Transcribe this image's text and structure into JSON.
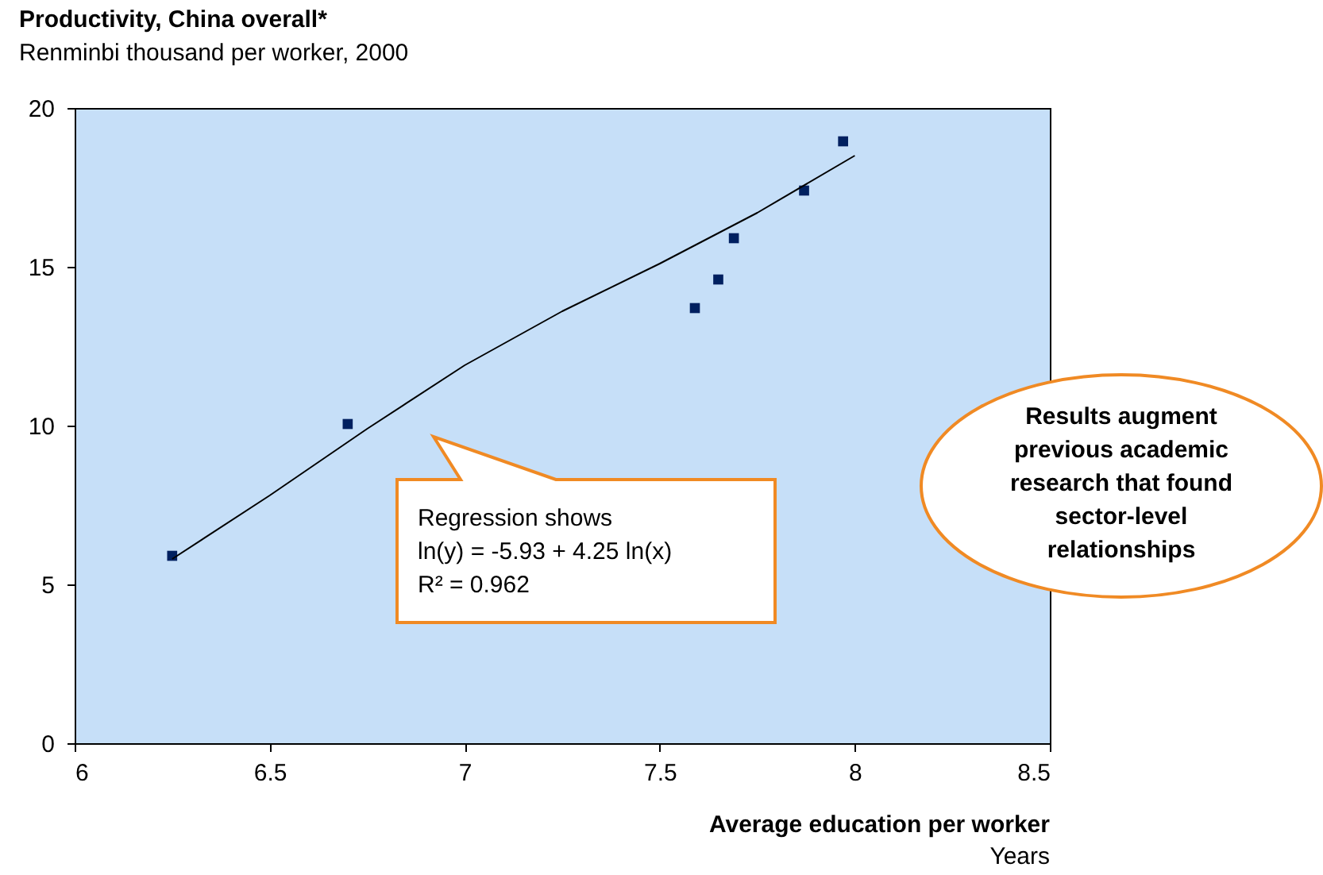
{
  "chart_data": {
    "type": "scatter",
    "title": "Productivity, China overall*",
    "subtitle": "Renminbi thousand per worker, 2000",
    "xlabel": "Average education per worker\nYears",
    "series": [
      {
        "color": "#002060",
        "marker": "square",
        "x": [
          6.25,
          6.7,
          7.59,
          7.65,
          7.69,
          7.87,
          7.97
        ],
        "values": [
          5.9,
          10.05,
          13.7,
          14.6,
          15.9,
          17.4,
          18.95
        ]
      },
      {
        "type": "line",
        "color": "#000000",
        "x": [
          6.25,
          6.5,
          6.75,
          7,
          7.25,
          7.5,
          7.75,
          8
        ],
        "values": [
          5.8,
          7.8,
          9.9,
          11.9,
          13.6,
          15.1,
          16.7,
          18.5
        ]
      }
    ],
    "xlim": [
      6,
      8.5
    ],
    "xticks": [
      6,
      6.5,
      7,
      7.5,
      8,
      8.5
    ],
    "ylim": [
      0,
      20
    ],
    "yticks": [
      0,
      5,
      10,
      15,
      20
    ],
    "grid": false,
    "annotations": [
      "Regression shows\nln(y) = -5.93 + 4.25 ln(x)\nR² = 0.962",
      "Results augment previous academic research that found sector-level relationships"
    ]
  }
}
